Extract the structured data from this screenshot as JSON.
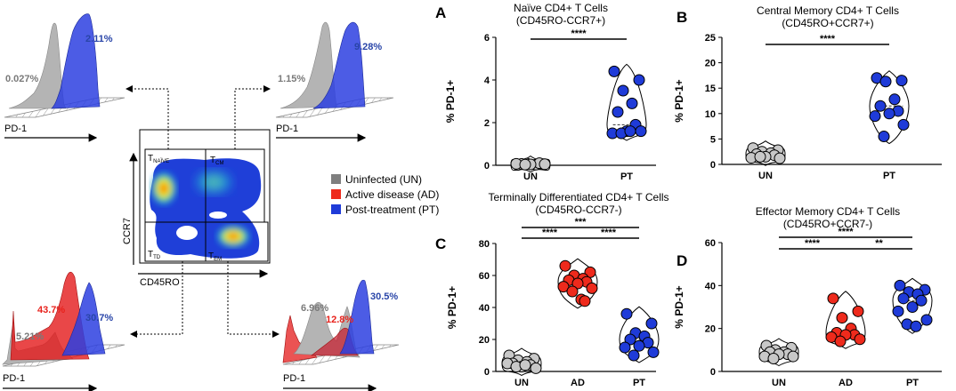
{
  "colors": {
    "un": "#c8c8c8",
    "ad": "#ee2a1c",
    "pt": "#1f3bd8",
    "un_text": "#7a7a7a",
    "ad_text": "#e8221c",
    "pt_text": "#2945a8"
  },
  "flow": {
    "xlabel": "CD45RO",
    "ylabel": "CCR7",
    "gate_naive": "T",
    "gate_naive_sub": "NAÏVE",
    "gate_cm": "T",
    "gate_cm_sub": "CM",
    "gate_td": "T",
    "gate_td_sub": "TD",
    "gate_em": "T",
    "gate_em_sub": "EM"
  },
  "histograms": {
    "axis_label": "PD-1",
    "naive": {
      "un": "0.027%",
      "pt": "2.11%"
    },
    "cm": {
      "un": "1.15%",
      "pt": "9.28%"
    },
    "td": {
      "un": "5.21%",
      "ad": "43.7%",
      "pt": "30.7%"
    },
    "em": {
      "un": "6.96%",
      "ad": "12.8%",
      "pt": "30.5%"
    }
  },
  "legend": {
    "un": "Uninfected (UN)",
    "ad": "Active disease (AD)",
    "pt": "Post-treatment (PT)"
  },
  "chart_data": [
    {
      "panel": "A",
      "type": "scatter",
      "title": "Naïve CD4+ T Cells",
      "subtitle": "(CD45RO-CCR7+)",
      "ylabel": "% PD-1+",
      "ylim": [
        0,
        6
      ],
      "yticks": [
        0,
        2,
        4,
        6
      ],
      "categories": [
        "UN",
        "PT"
      ],
      "series": [
        {
          "name": "UN",
          "values": [
            0.02,
            0.05,
            0.08,
            0.03,
            0.06,
            0.1,
            0.04,
            0.07,
            0.05,
            0.03
          ]
        },
        {
          "name": "PT",
          "values": [
            4.4,
            4.0,
            3.5,
            2.9,
            2.5,
            1.9,
            1.6,
            1.5,
            1.6,
            1.5,
            1.6
          ]
        }
      ],
      "significance": [
        {
          "pair": [
            "UN",
            "PT"
          ],
          "label": "****"
        }
      ]
    },
    {
      "panel": "B",
      "type": "scatter",
      "title": "Central Memory CD4+ T Cells",
      "subtitle": "(CD45RO+CCR7+)",
      "ylabel": "% PD-1+",
      "ylim": [
        0,
        25
      ],
      "yticks": [
        0,
        5,
        10,
        15,
        20,
        25
      ],
      "categories": [
        "UN",
        "PT"
      ],
      "series": [
        {
          "name": "UN",
          "values": [
            3.2,
            2.8,
            2.5,
            2.2,
            2.0,
            1.8,
            1.5,
            1.3,
            1.2,
            1.5
          ]
        },
        {
          "name": "PT",
          "values": [
            17.0,
            16.5,
            16.3,
            12.8,
            11.5,
            10.5,
            10.0,
            9.5,
            7.8,
            5.5
          ]
        }
      ],
      "significance": [
        {
          "pair": [
            "UN",
            "PT"
          ],
          "label": "****"
        }
      ]
    },
    {
      "panel": "C",
      "type": "scatter",
      "title": "Terminally Differentiated CD4+ T Cells",
      "subtitle": "(CD45RO-CCR7-)",
      "ylabel": "% PD-1+",
      "ylim": [
        0,
        80
      ],
      "yticks": [
        0,
        20,
        40,
        60,
        80
      ],
      "categories": [
        "UN",
        "AD",
        "PT"
      ],
      "series": [
        {
          "name": "UN",
          "values": [
            10,
            8,
            7,
            6,
            5,
            4,
            3,
            5,
            2,
            3,
            4
          ]
        },
        {
          "name": "AD",
          "values": [
            66,
            62,
            60,
            58,
            57,
            56,
            55,
            53,
            52,
            50,
            45,
            44
          ]
        },
        {
          "name": "PT",
          "values": [
            36,
            30,
            24,
            22,
            20,
            18,
            16,
            15,
            12,
            10
          ]
        }
      ],
      "significance": [
        {
          "pair": [
            "UN",
            "PT"
          ],
          "label": "***"
        },
        {
          "pair": [
            "UN",
            "AD"
          ],
          "label": "****"
        },
        {
          "pair": [
            "AD",
            "PT"
          ],
          "label": "****"
        }
      ]
    },
    {
      "panel": "D",
      "type": "scatter",
      "title": "Effector Memory CD4+ T Cells",
      "subtitle": "(CD45RO+CCR7-)",
      "ylabel": "% PD-1+",
      "ylim": [
        0,
        60
      ],
      "yticks": [
        0,
        20,
        40,
        60
      ],
      "categories": [
        "UN",
        "AD",
        "PT"
      ],
      "series": [
        {
          "name": "UN",
          "values": [
            12,
            11,
            10,
            9,
            9,
            8,
            8,
            7,
            7,
            6
          ]
        },
        {
          "name": "AD",
          "values": [
            34,
            28,
            25,
            20,
            18,
            17,
            17,
            16,
            15,
            14
          ]
        },
        {
          "name": "PT",
          "values": [
            40,
            38,
            37,
            36,
            34,
            33,
            30,
            28,
            24,
            22,
            21
          ]
        }
      ],
      "significance": [
        {
          "pair": [
            "UN",
            "PT"
          ],
          "label": "****"
        },
        {
          "pair": [
            "UN",
            "AD"
          ],
          "label": "****"
        },
        {
          "pair": [
            "AD",
            "PT"
          ],
          "label": "**"
        }
      ]
    }
  ]
}
